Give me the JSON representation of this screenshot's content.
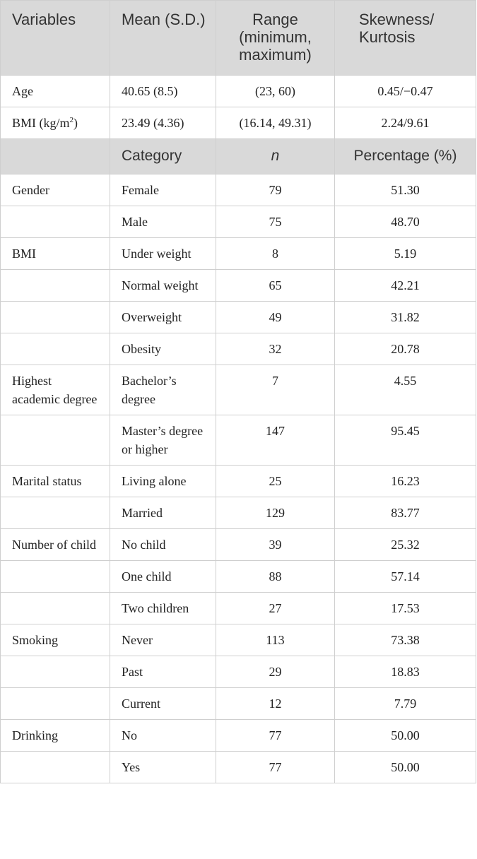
{
  "header": {
    "variables": "Variables",
    "mean": "Mean (S.D.)",
    "range": "Range (minimum, maximum)",
    "skew": "Skewness/ Kurtosis"
  },
  "continuous": [
    {
      "variable": "Age",
      "mean": "40.65 (8.5)",
      "range": "(23, 60)",
      "skew": "0.45/−0.47"
    },
    {
      "variable": "BMI (kg/m",
      "variable_sup": "2",
      "variable_end": ")",
      "mean": "23.49 (4.36)",
      "range": "(16.14, 49.31)",
      "skew": "2.24/9.61"
    }
  ],
  "subheader": {
    "category": "Category",
    "n": "n",
    "percentage": "Percentage (%)"
  },
  "categorical": [
    {
      "variable": "Gender",
      "category": "Female",
      "n": "79",
      "pct": "51.30"
    },
    {
      "variable": "",
      "category": "Male",
      "n": "75",
      "pct": "48.70"
    },
    {
      "variable": "BMI",
      "category": "Under weight",
      "n": "8",
      "pct": "5.19"
    },
    {
      "variable": "",
      "category": "Normal weight",
      "n": "65",
      "pct": "42.21"
    },
    {
      "variable": "",
      "category": "Overweight",
      "n": "49",
      "pct": "31.82"
    },
    {
      "variable": "",
      "category": "Obesity",
      "n": "32",
      "pct": "20.78"
    },
    {
      "variable": "Highest academic degree",
      "category": "Bachelor’s degree",
      "n": "7",
      "pct": "4.55"
    },
    {
      "variable": "",
      "category": "Master’s degree or higher",
      "n": "147",
      "pct": "95.45"
    },
    {
      "variable": "Marital status",
      "category": "Living alone",
      "n": "25",
      "pct": "16.23"
    },
    {
      "variable": "",
      "category": "Married",
      "n": "129",
      "pct": "83.77"
    },
    {
      "variable": "Number of child",
      "category": "No child",
      "n": "39",
      "pct": "25.32"
    },
    {
      "variable": "",
      "category": "One child",
      "n": "88",
      "pct": "57.14"
    },
    {
      "variable": "",
      "category": "Two children",
      "n": "27",
      "pct": "17.53"
    },
    {
      "variable": "Smoking",
      "category": "Never",
      "n": "113",
      "pct": "73.38"
    },
    {
      "variable": "",
      "category": "Past",
      "n": "29",
      "pct": "18.83"
    },
    {
      "variable": "",
      "category": "Current",
      "n": "12",
      "pct": "7.79"
    },
    {
      "variable": "Drinking",
      "category": "No",
      "n": "77",
      "pct": "50.00"
    },
    {
      "variable": "",
      "category": "Yes",
      "n": "77",
      "pct": "50.00"
    }
  ]
}
